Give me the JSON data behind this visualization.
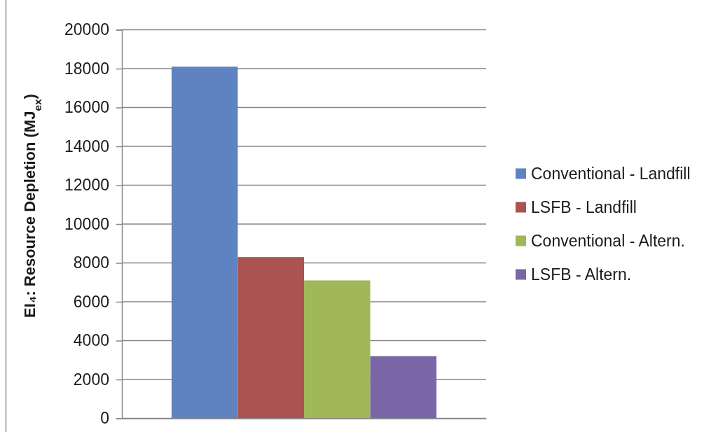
{
  "chart_data": {
    "type": "bar",
    "ylabel": "EI₄: Resource Depletion (MJ$_{ex}$)",
    "categories": [
      null
    ],
    "series": [
      {
        "name": "Conventional - Landfill",
        "color": "#5f82c1",
        "values": [
          18100
        ]
      },
      {
        "name": "LSFB - Landfill",
        "color": "#aa5353",
        "values": [
          8300
        ]
      },
      {
        "name": "Conventional - Altern.",
        "color": "#a0b858",
        "values": [
          7100
        ]
      },
      {
        "name": "LSFB - Altern.",
        "color": "#7a65a6",
        "values": [
          3200
        ]
      }
    ],
    "ylim": [
      0,
      20000
    ],
    "yticks": [
      0,
      2000,
      4000,
      6000,
      8000,
      10000,
      12000,
      14000,
      16000,
      18000,
      20000
    ],
    "grid": "y",
    "legend": "right"
  }
}
